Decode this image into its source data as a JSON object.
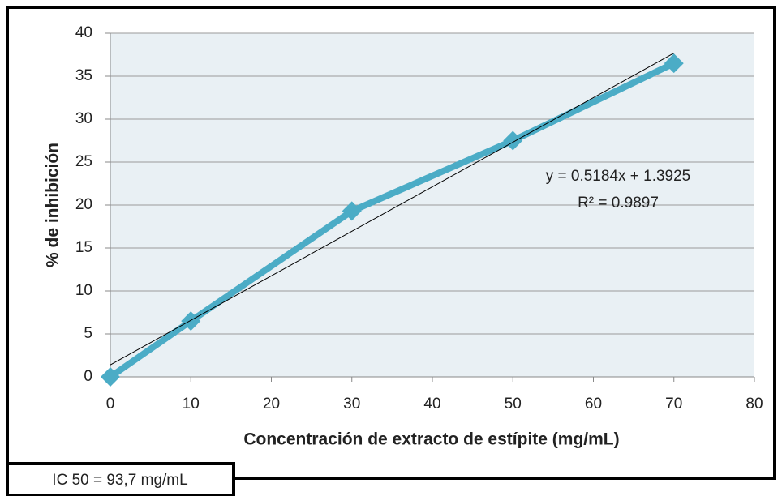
{
  "chart_data": {
    "type": "line",
    "x": [
      0,
      10,
      30,
      50,
      70
    ],
    "series": [
      {
        "color": "#4bacc6",
        "values": [
          0,
          6.5,
          19.3,
          27.5,
          36.5
        ]
      }
    ],
    "xlim": [
      0,
      80
    ],
    "xticks": [
      0,
      10,
      20,
      30,
      40,
      50,
      60,
      70,
      80
    ],
    "ylim": [
      0,
      40
    ],
    "yticks": [
      0,
      5,
      10,
      15,
      20,
      25,
      30,
      35,
      40
    ],
    "grid": true,
    "x_label": "Concentración  de extracto de estípite (mg/mL)",
    "y_label": "% de inhibición",
    "trendline": {
      "slope": 0.5184,
      "intercept": 1.3925,
      "equation": "y = 0.5184x + 1.3925",
      "r_squared_label": "R² = 0.9897"
    },
    "annotation": "IC 50 = 93,7 mg/mL"
  }
}
